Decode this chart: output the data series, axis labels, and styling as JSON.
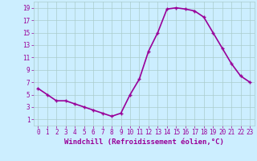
{
  "hours": [
    0,
    1,
    2,
    3,
    4,
    5,
    6,
    7,
    8,
    9,
    10,
    11,
    12,
    13,
    14,
    15,
    16,
    17,
    18,
    19,
    20,
    21,
    22,
    23
  ],
  "values": [
    6,
    5,
    4,
    4,
    3.5,
    3,
    2.5,
    2,
    1.5,
    2,
    5,
    7.5,
    12,
    15,
    18.8,
    19,
    18.8,
    18.5,
    17.5,
    15,
    12.5,
    10,
    8,
    7
  ],
  "line_color": "#990099",
  "marker_color": "#990099",
  "bg_color": "#cceeff",
  "grid_color": "#aacccc",
  "xlabel": "Windchill (Refroidissement éolien,°C)",
  "ylim": [
    0,
    20
  ],
  "xlim": [
    -0.5,
    23.5
  ],
  "yticks": [
    1,
    3,
    5,
    7,
    9,
    11,
    13,
    15,
    17,
    19
  ],
  "xticks": [
    0,
    1,
    2,
    3,
    4,
    5,
    6,
    7,
    8,
    9,
    10,
    11,
    12,
    13,
    14,
    15,
    16,
    17,
    18,
    19,
    20,
    21,
    22,
    23
  ],
  "tick_color": "#990099",
  "label_fontsize": 6.5,
  "tick_fontsize": 5.5,
  "line_width": 1.2,
  "marker_size": 3.5
}
